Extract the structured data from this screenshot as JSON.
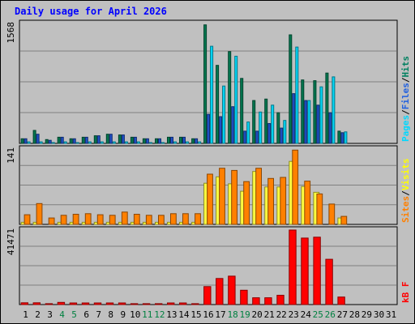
{
  "chart_data": {
    "type": "bar",
    "title": "Daily usage for April 2026",
    "x": [
      "1",
      "2",
      "3",
      "4",
      "5",
      "6",
      "7",
      "8",
      "9",
      "10",
      "11",
      "12",
      "13",
      "14",
      "15",
      "16",
      "17",
      "18",
      "19",
      "20",
      "21",
      "22",
      "23",
      "24",
      "25",
      "26",
      "27",
      "28",
      "29",
      "30",
      "31"
    ],
    "weekend_days": [
      "4",
      "5",
      "11",
      "12",
      "18",
      "19",
      "25",
      "26"
    ],
    "panels": [
      {
        "name": "hits-files-pages",
        "ymax_label": "1568",
        "ymax": 1568,
        "legend": [
          "Pages",
          "/",
          "Files",
          "/",
          "Hits"
        ],
        "legend_colors": [
          "#00d8ff",
          "#000000",
          "#2060e0",
          "#000000",
          "#008060"
        ],
        "series": [
          {
            "name": "Hits",
            "color": "#007850",
            "values": [
              60,
              170,
              50,
              80,
              60,
              80,
              100,
              120,
              110,
              80,
              60,
              60,
              80,
              80,
              60,
              1550,
              1020,
              1200,
              850,
              560,
              580,
              400,
              1420,
              830,
              820,
              920,
              160,
              0,
              0,
              0,
              0
            ]
          },
          {
            "name": "Files",
            "color": "#1f50c8",
            "values": [
              60,
              120,
              40,
              80,
              60,
              80,
              100,
              120,
              110,
              80,
              60,
              60,
              80,
              80,
              60,
              380,
              350,
              480,
              160,
              160,
              260,
              200,
              650,
              560,
              500,
              400,
              140,
              0,
              0,
              0,
              0
            ]
          },
          {
            "name": "Pages",
            "color": "#00d8f8",
            "values": [
              20,
              20,
              10,
              20,
              10,
              20,
              20,
              20,
              20,
              20,
              10,
              10,
              20,
              20,
              20,
              1270,
              750,
              1140,
              280,
              410,
              500,
              300,
              1260,
              560,
              740,
              870,
              150,
              0,
              0,
              0,
              0
            ]
          }
        ]
      },
      {
        "name": "sites-visits",
        "ymax_label": "141",
        "ymax": 141,
        "legend": [
          "Sites",
          "/",
          "Visits"
        ],
        "legend_colors": [
          "#ff8000",
          "#000000",
          "#ffff00"
        ],
        "series": [
          {
            "name": "Visits",
            "color": "#ffff40",
            "values": [
              4,
              4,
              0,
              4,
              4,
              4,
              4,
              4,
              4,
              4,
              4,
              4,
              4,
              4,
              4,
              77,
              89,
              76,
              62,
              99,
              70,
              70,
              118,
              71,
              60,
              0,
              12,
              0,
              0,
              0,
              0
            ]
          },
          {
            "name": "Sites",
            "color": "#ff8000",
            "values": [
              18,
              39,
              12,
              17,
              19,
              20,
              18,
              17,
              23,
              19,
              17,
              17,
              20,
              20,
              20,
              94,
              105,
              101,
              80,
              105,
              86,
              88,
              139,
              81,
              57,
              38,
              15,
              0,
              0,
              0,
              0
            ]
          }
        ]
      },
      {
        "name": "kbytes",
        "ymax_label": "41471",
        "ymax": 41471,
        "legend": [
          "kB",
          "F"
        ],
        "legend_colors": [
          "#ff0000",
          "#ff0000"
        ],
        "series": [
          {
            "name": "kB F",
            "color": "#ff0000",
            "values": [
              1000,
              1000,
              500,
              1200,
              900,
              900,
              900,
              900,
              900,
              500,
              500,
              500,
              900,
              900,
              500,
              10000,
              14500,
              15800,
              8000,
              3800,
              3800,
              5200,
              41471,
              37000,
              37500,
              25200,
              4200,
              0,
              0,
              0,
              0
            ]
          }
        ]
      }
    ]
  }
}
